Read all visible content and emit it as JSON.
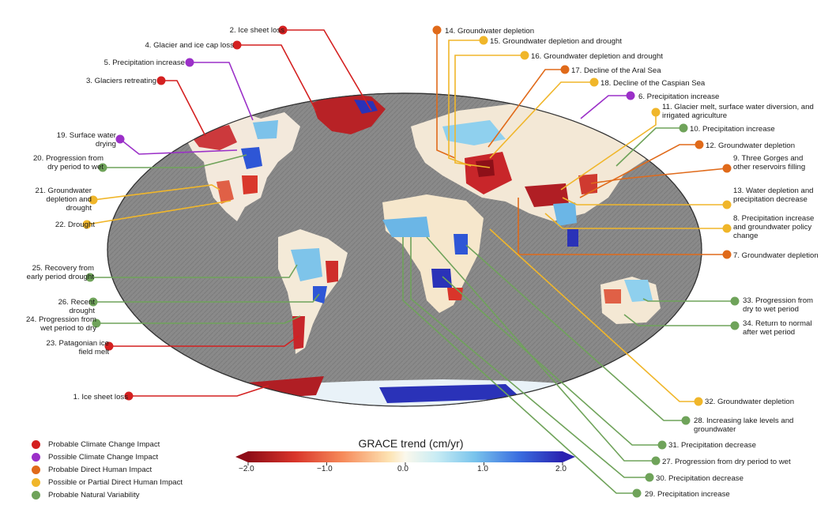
{
  "legend": [
    {
      "label": "Probable Climate Change Impact",
      "color": "#d42020"
    },
    {
      "label": "Possible Climate Change Impact",
      "color": "#9b30c8"
    },
    {
      "label": "Probable Direct Human Impact",
      "color": "#e06a1a"
    },
    {
      "label": "Possible or Partial Direct Human Impact",
      "color": "#f0b62a"
    },
    {
      "label": "Probable Natural Variability",
      "color": "#6fa35a"
    }
  ],
  "colorbar": {
    "title": "GRACE trend (cm/yr)",
    "ticks": [
      "−2.0",
      "−1.0",
      "0.0",
      "1.0",
      "2.0"
    ],
    "min": -2.0,
    "max": 2.0
  },
  "labels": [
    {
      "id": 1,
      "text": "1. Ice sheet loss",
      "cat": 0
    },
    {
      "id": 2,
      "text": "2. Ice sheet loss",
      "cat": 0
    },
    {
      "id": 3,
      "text": "3. Glaciers retreating",
      "cat": 0
    },
    {
      "id": 4,
      "text": "4. Glacier and ice cap loss",
      "cat": 0
    },
    {
      "id": 5,
      "text": "5. Precipitation increase",
      "cat": 1
    },
    {
      "id": 6,
      "text": "6. Precipitation increase",
      "cat": 1
    },
    {
      "id": 7,
      "text": "7. Groundwater depletion",
      "cat": 2
    },
    {
      "id": 8,
      "text": "8. Precipitation increase and groundwater policy change",
      "cat": 3
    },
    {
      "id": 9,
      "text": "9. Three Gorges and other reservoirs filling",
      "cat": 2
    },
    {
      "id": 10,
      "text": "10. Precipitation increase",
      "cat": 4
    },
    {
      "id": 11,
      "text": "11. Glacier melt, surface water diversion, and irrigated agriculture",
      "cat": 3
    },
    {
      "id": 12,
      "text": "12. Groundwater depletion",
      "cat": 2
    },
    {
      "id": 13,
      "text": "13. Water depletion and precipitation decrease",
      "cat": 3
    },
    {
      "id": 14,
      "text": "14. Groundwater depletion",
      "cat": 2
    },
    {
      "id": 15,
      "text": "15. Groundwater depletion and drought",
      "cat": 3
    },
    {
      "id": 16,
      "text": "16. Groundwater depletion and drought",
      "cat": 3
    },
    {
      "id": 17,
      "text": "17. Decline of the Aral Sea",
      "cat": 2
    },
    {
      "id": 18,
      "text": "18. Decline of the Caspian Sea",
      "cat": 3
    },
    {
      "id": 19,
      "text": "19. Surface water drying",
      "cat": 1
    },
    {
      "id": 20,
      "text": "20. Progression from dry period to wet",
      "cat": 4
    },
    {
      "id": 21,
      "text": "21. Groundwater depletion and drought",
      "cat": 3
    },
    {
      "id": 22,
      "text": "22. Drought",
      "cat": 3
    },
    {
      "id": 23,
      "text": "23. Patagonian ice field melt",
      "cat": 0
    },
    {
      "id": 24,
      "text": "24. Progression from wet period to dry",
      "cat": 4
    },
    {
      "id": 25,
      "text": "25. Recovery from early period drought",
      "cat": 4
    },
    {
      "id": 26,
      "text": "26. Recent drought",
      "cat": 4
    },
    {
      "id": 27,
      "text": "27. Progression from dry period to wet",
      "cat": 4
    },
    {
      "id": 28,
      "text": "28. Increasing lake levels and groundwater",
      "cat": 4
    },
    {
      "id": 29,
      "text": "29. Precipitation increase",
      "cat": 4
    },
    {
      "id": 30,
      "text": "30. Precipitation decrease",
      "cat": 4
    },
    {
      "id": 31,
      "text": "31. Precipitation decrease",
      "cat": 4
    },
    {
      "id": 32,
      "text": "32. Groundwater depletion",
      "cat": 3
    },
    {
      "id": 33,
      "text": "33. Progression from dry to wet period",
      "cat": 4
    },
    {
      "id": 34,
      "text": "34. Return to normal after wet period",
      "cat": 4
    }
  ]
}
